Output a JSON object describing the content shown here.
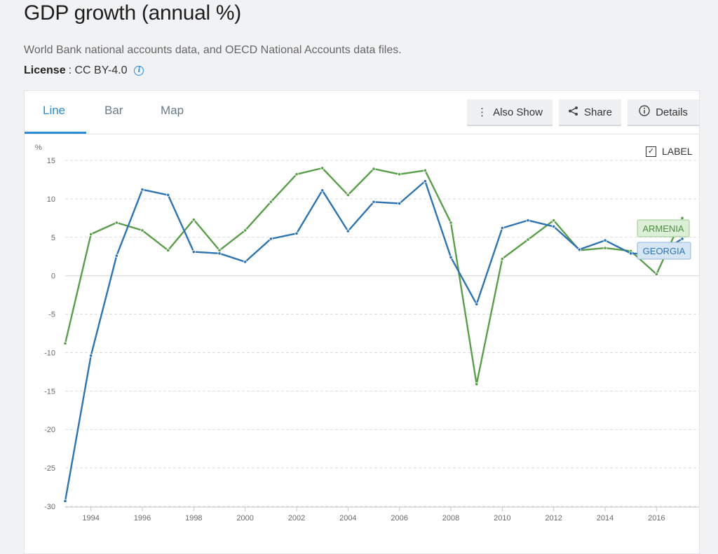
{
  "page": {
    "title": "GDP growth (annual %)",
    "source": "World Bank national accounts data, and OECD National Accounts data files.",
    "license_label": "License",
    "license_value": ": CC BY-4.0"
  },
  "tabs": [
    {
      "label": "Line",
      "active": true
    },
    {
      "label": "Bar",
      "active": false
    },
    {
      "label": "Map",
      "active": false
    }
  ],
  "actions": {
    "also_show": "Also Show",
    "share": "Share",
    "details": "Details"
  },
  "label_toggle": {
    "text": "LABEL",
    "checked": true
  },
  "colors": {
    "accent": "#2b8cd6",
    "armenia": "#5a9e4b",
    "georgia": "#2e74b0"
  },
  "chart_data": {
    "type": "line",
    "title": "",
    "xlabel": "",
    "ylabel": "%",
    "xlim": [
      1993,
      2017
    ],
    "ylim": [
      -30,
      15
    ],
    "yticks": [
      15,
      10,
      5,
      0,
      -5,
      -10,
      -15,
      -20,
      -25,
      -30
    ],
    "xticks": [
      1994,
      1996,
      1998,
      2000,
      2002,
      2004,
      2006,
      2008,
      2010,
      2012,
      2014,
      2016
    ],
    "grid": true,
    "x": [
      1993,
      1994,
      1995,
      1996,
      1997,
      1998,
      1999,
      2000,
      2001,
      2002,
      2003,
      2004,
      2005,
      2006,
      2007,
      2008,
      2009,
      2010,
      2011,
      2012,
      2013,
      2014,
      2015,
      2016,
      2017
    ],
    "series": [
      {
        "name": "ARMENIA",
        "color": "#5a9e4b",
        "values": [
          -8.8,
          5.4,
          6.9,
          5.9,
          3.3,
          7.3,
          3.3,
          5.9,
          9.6,
          13.2,
          14.0,
          10.5,
          13.9,
          13.2,
          13.7,
          6.9,
          -14.1,
          2.2,
          4.7,
          7.2,
          3.3,
          3.6,
          3.2,
          0.2,
          7.5
        ]
      },
      {
        "name": "GEORGIA",
        "color": "#2e74b0",
        "values": [
          -29.3,
          -10.4,
          2.6,
          11.2,
          10.5,
          3.1,
          2.9,
          1.8,
          4.8,
          5.5,
          11.1,
          5.8,
          9.6,
          9.4,
          12.3,
          2.4,
          -3.7,
          6.2,
          7.2,
          6.4,
          3.4,
          4.6,
          2.9,
          2.8,
          4.8
        ]
      }
    ]
  }
}
